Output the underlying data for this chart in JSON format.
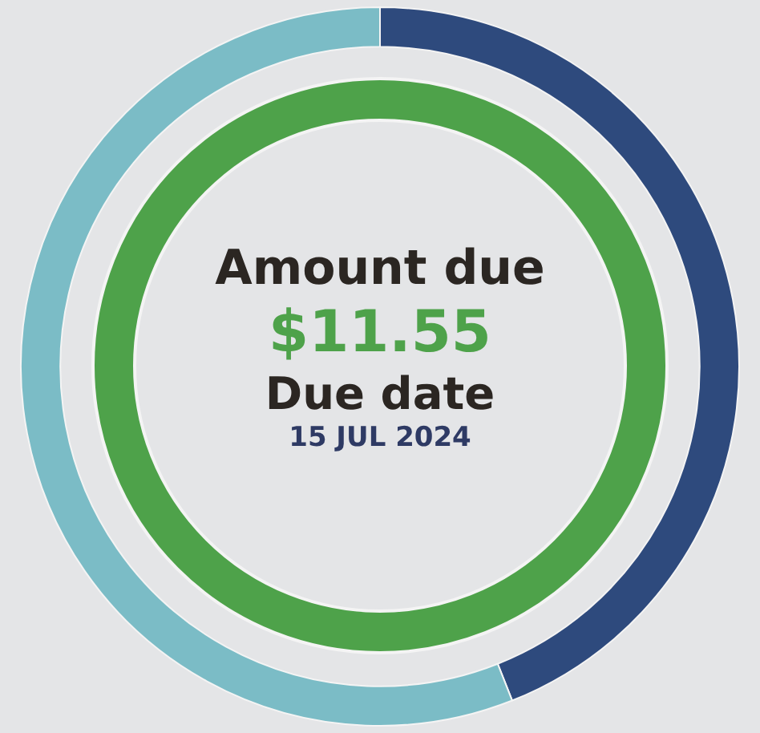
{
  "chart_data": {
    "type": "donut",
    "categories": [
      null,
      null
    ],
    "series": [
      {
        "values": [
          44,
          56
        ],
        "colors": [
          "#2e4a7d",
          "#7bbcc6"
        ]
      }
    ],
    "annotations": [
      "Amount due",
      "$11.55",
      "Due date",
      "15 JUL 2024"
    ],
    "legend": false
  }
}
